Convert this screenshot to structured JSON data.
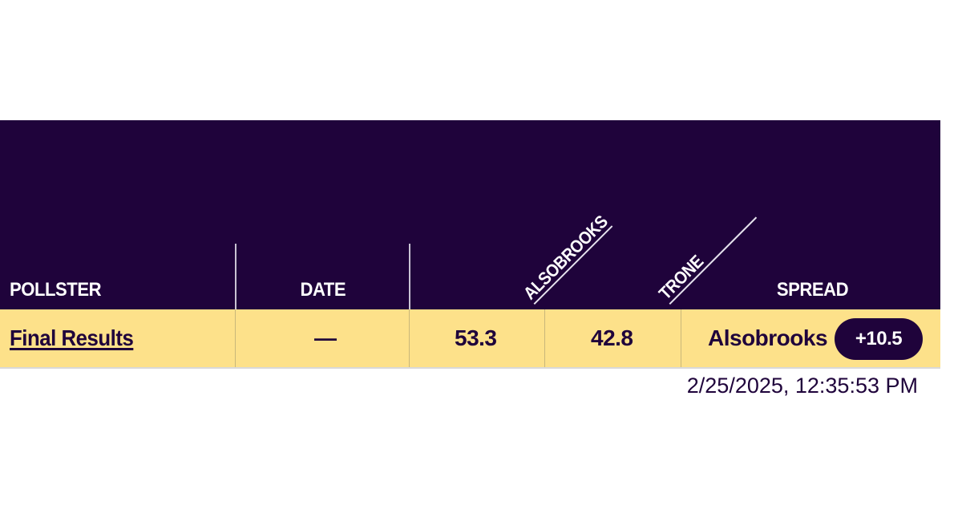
{
  "table": {
    "headers": {
      "pollster": "POLLSTER",
      "date": "DATE",
      "candidate_1": "ALSOBROOKS",
      "candidate_2": "TRONE",
      "spread": "SPREAD"
    },
    "rows": [
      {
        "pollster": "Final Results",
        "date": "—",
        "candidate_1_value": "53.3",
        "candidate_2_value": "42.8",
        "spread_leader": "Alsobrooks",
        "spread_margin": "+10.5"
      }
    ]
  },
  "timestamp": "2/25/2025, 12:35:53 PM",
  "colors": {
    "header_bg": "#1f033b",
    "row_bg": "#fde18a",
    "text": "#1f033b",
    "badge_bg": "#1f033b"
  }
}
